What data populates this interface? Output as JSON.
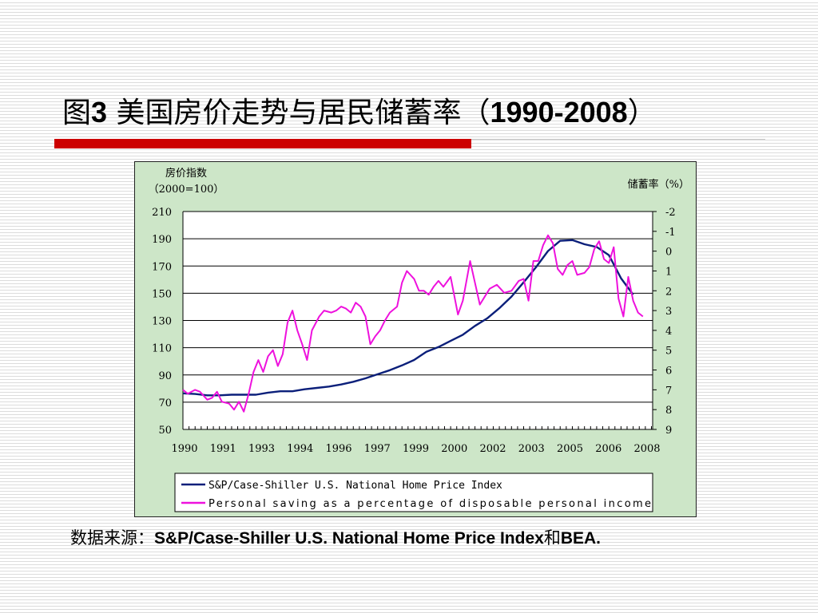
{
  "slide": {
    "title_prefix": "图",
    "title_number": "3",
    "title_text": " 美国房价走势与居民储蓄率（",
    "title_years": "1990-2008",
    "title_suffix": "）",
    "source_prefix": "数据来源：",
    "source_index": "S&P/Case-Shiller U.S. National Home Price Index",
    "source_and": "和",
    "source_bea": "BEA.",
    "accent_color": "#cc0000"
  },
  "chart_data": {
    "type": "line",
    "title": "",
    "ylabel_left": [
      "房价指数",
      "（2000=100）"
    ],
    "ylabel_right": "储蓄率（%）",
    "x_ticks": [
      "1990",
      "1991",
      "1993",
      "1994",
      "1996",
      "1997",
      "1999",
      "2000",
      "2002",
      "2003",
      "2005",
      "2006",
      "2008"
    ],
    "xlim": [
      1990,
      2009.3
    ],
    "y_left": {
      "ticks": [
        "210",
        "190",
        "170",
        "150",
        "130",
        "110",
        "90",
        "70",
        "50"
      ],
      "lim": [
        50,
        210
      ]
    },
    "y_right": {
      "ticks": [
        "-2",
        "-1",
        "0",
        "1",
        "2",
        "3",
        "4",
        "5",
        "6",
        "7",
        "8",
        "9"
      ],
      "lim": [
        -2,
        9
      ],
      "inverted": true
    },
    "grid": true,
    "legend_position": "bottom",
    "series": [
      {
        "name": "S&P/Case-Shiller U.S. National Home Price Index",
        "axis": "left",
        "color": "#0b1f7a",
        "x": [
          1990,
          1990.5,
          1991,
          1991.5,
          1992,
          1992.5,
          1993,
          1993.5,
          1994,
          1994.5,
          1995,
          1995.5,
          1996,
          1996.5,
          1997,
          1997.5,
          1998,
          1998.5,
          1999,
          1999.5,
          2000,
          2000.5,
          2001,
          2001.5,
          2002,
          2002.5,
          2003,
          2003.5,
          2004,
          2004.5,
          2005,
          2005.5,
          2006,
          2006.5,
          2007,
          2007.5,
          2008,
          2008.5
        ],
        "y": [
          76.5,
          76,
          75,
          75,
          75.5,
          75.5,
          75.5,
          77,
          78,
          78,
          79.5,
          80.5,
          81.5,
          83,
          85,
          87.5,
          90.5,
          93.5,
          97,
          101,
          107,
          110.5,
          115,
          119.5,
          126,
          131.5,
          139,
          147.5,
          158,
          169,
          181,
          188.5,
          189,
          186,
          184,
          178,
          161,
          149
        ]
      },
      {
        "name": "Personal saving as a percentage of disposable personal income",
        "axis": "right",
        "color": "#ee11dd",
        "x": [
          1990,
          1990.2,
          1990.5,
          1990.7,
          1991,
          1991.2,
          1991.4,
          1991.6,
          1991.9,
          1992.1,
          1992.3,
          1992.5,
          1992.7,
          1992.9,
          1993.1,
          1993.3,
          1993.5,
          1993.7,
          1993.9,
          1994.1,
          1994.3,
          1994.5,
          1994.7,
          1994.9,
          1995.1,
          1995.3,
          1995.6,
          1995.8,
          1996.1,
          1996.3,
          1996.5,
          1996.7,
          1996.9,
          1997.1,
          1997.3,
          1997.5,
          1997.7,
          1997.9,
          1998.1,
          1998.3,
          1998.5,
          1998.8,
          1999,
          1999.2,
          1999.5,
          1999.7,
          1999.9,
          2000.1,
          2000.3,
          2000.5,
          2000.7,
          2001,
          2001.3,
          2001.5,
          2001.8,
          2002,
          2002.2,
          2002.4,
          2002.6,
          2002.9,
          2003.2,
          2003.5,
          2003.8,
          2004,
          2004.2,
          2004.4,
          2004.6,
          2004.8,
          2005,
          2005.2,
          2005.4,
          2005.6,
          2005.8,
          2006,
          2006.2,
          2006.5,
          2006.7,
          2006.9,
          2007.1,
          2007.3,
          2007.5,
          2007.7,
          2007.9,
          2008.1,
          2008.3,
          2008.5,
          2008.7,
          2008.9
        ],
        "y": [
          7,
          7.2,
          7,
          7.1,
          7.5,
          7.4,
          7.1,
          7.6,
          7.7,
          8,
          7.6,
          8.1,
          7.2,
          6.1,
          5.5,
          6.1,
          5.3,
          5,
          5.8,
          5.2,
          3.6,
          3,
          4,
          4.7,
          5.5,
          4,
          3.3,
          3,
          3.1,
          3,
          2.8,
          2.9,
          3.1,
          2.6,
          2.8,
          3.3,
          4.7,
          4.3,
          4,
          3.5,
          3.1,
          2.8,
          1.6,
          1,
          1.4,
          2,
          2,
          2.2,
          1.8,
          1.5,
          1.8,
          1.3,
          3.2,
          2.5,
          0.5,
          1.6,
          2.7,
          2.3,
          1.9,
          1.7,
          2.1,
          2,
          1.5,
          1.4,
          2.5,
          0.5,
          0.5,
          -0.3,
          -0.8,
          -0.4,
          0.9,
          1.2,
          0.7,
          0.5,
          1.2,
          1.1,
          0.8,
          -0.1,
          -0.5,
          0.4,
          0.6,
          -0.2,
          2.4,
          3.3,
          1.3,
          2.5,
          3.1,
          3.3
        ]
      }
    ]
  }
}
